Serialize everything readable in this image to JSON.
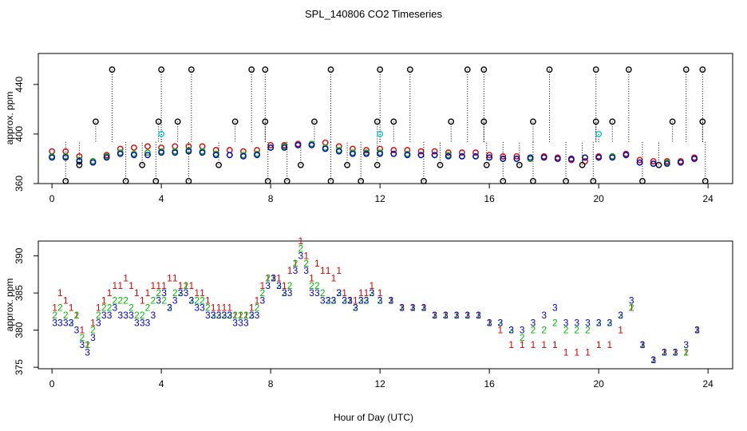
{
  "figure": {
    "title": "SPL_140806  CO2 Timeseries",
    "xlabel": "Hour of Day (UTC)"
  },
  "colors": {
    "series1": "#dd0000",
    "series2": "#00bb00",
    "series3": "#0000cc",
    "flagged": "#000000",
    "flagged_alt": "#00cccc"
  },
  "chart_data": [
    {
      "type": "scatter",
      "title": "",
      "xlabel": "",
      "ylabel": "approx. ppm",
      "xlim": [
        -0.5,
        24.9
      ],
      "ylim": [
        360,
        465
      ],
      "xticks": [
        0,
        4,
        8,
        12,
        16,
        20,
        24
      ],
      "yticks": [
        360,
        400,
        440
      ],
      "series": [
        {
          "name": "1",
          "symbol": "o",
          "x": [
            0,
            0.5,
            1,
            1.5,
            2,
            2.5,
            3,
            3.5,
            4,
            4.5,
            5,
            5.5,
            6,
            6.5,
            7,
            7.5,
            8,
            8.5,
            9,
            9.5,
            10,
            10.5,
            11,
            11.5,
            12,
            12.5,
            13,
            13.5,
            14,
            14.5,
            15,
            15.5,
            16,
            16.5,
            17,
            17.5,
            18,
            18.5,
            19,
            19.5,
            20,
            20.5,
            21,
            21.5,
            22,
            22.5,
            23,
            23.5
          ],
          "values": [
            386,
            386,
            382,
            378,
            383,
            388,
            389,
            390,
            389,
            390,
            390,
            390,
            387,
            387,
            386,
            387,
            391,
            391,
            392,
            392,
            393,
            390,
            388,
            387,
            388,
            387,
            387,
            386,
            386,
            385,
            385,
            385,
            383,
            382,
            382,
            380,
            382,
            381,
            379,
            378,
            382,
            382,
            384,
            379,
            378,
            378,
            378,
            381
          ]
        },
        {
          "name": "2",
          "symbol": "o",
          "x": [
            0,
            0.5,
            1,
            1.5,
            2,
            2.5,
            3,
            3.5,
            4,
            4.5,
            5,
            5.5,
            6,
            6.5,
            7,
            7.5,
            8,
            8.5,
            9,
            9.5,
            10,
            10.5,
            11,
            11.5,
            12,
            12.5,
            13,
            13.5,
            14,
            14.5,
            15,
            15.5,
            16,
            16.5,
            17,
            17.5,
            18,
            18.5,
            19,
            19.5,
            20,
            20.5,
            21,
            21.5,
            22,
            22.5,
            23,
            23.5
          ],
          "values": [
            382,
            382,
            379,
            378,
            382,
            385,
            384,
            385,
            386,
            386,
            387,
            386,
            384,
            383,
            383,
            384,
            389,
            390,
            391,
            392,
            389,
            387,
            385,
            385,
            385,
            384,
            384,
            383,
            383,
            383,
            382,
            382,
            381,
            380,
            380,
            380,
            381,
            380,
            380,
            381,
            381,
            382,
            383,
            377,
            376,
            377,
            377,
            380
          ]
        },
        {
          "name": "3",
          "symbol": "o",
          "x": [
            0,
            0.5,
            1,
            1.5,
            2,
            2.5,
            3,
            3.5,
            4,
            4.5,
            5,
            5.5,
            6,
            6.5,
            7,
            7.5,
            8,
            8.5,
            9,
            9.5,
            10,
            10.5,
            11,
            11.5,
            12,
            12.5,
            13,
            13.5,
            14,
            14.5,
            15,
            15.5,
            16,
            16.5,
            17,
            17.5,
            18,
            18.5,
            19,
            19.5,
            20,
            20.5,
            21,
            21.5,
            22,
            22.5,
            23,
            23.5
          ],
          "values": [
            381,
            381,
            378,
            377,
            381,
            384,
            383,
            383,
            385,
            385,
            386,
            385,
            383,
            383,
            382,
            383,
            389,
            389,
            391,
            391,
            388,
            386,
            384,
            384,
            384,
            384,
            383,
            383,
            383,
            382,
            382,
            382,
            381,
            380,
            380,
            381,
            381,
            380,
            380,
            381,
            381,
            381,
            383,
            377,
            376,
            376,
            377,
            380
          ]
        },
        {
          "name": "flagged",
          "symbol": "o",
          "x": [
            2.2,
            4,
            5.1,
            7.3,
            7.8,
            10.2,
            12,
            13.1,
            15.2,
            15.8,
            18.2,
            19.9,
            21.1,
            23.2,
            23.8,
            1.6,
            3.9,
            4.6,
            6.7,
            7.8,
            9.6,
            11.9,
            12.5,
            14.6,
            15.8,
            17.6,
            19.9,
            20.5,
            22.7,
            23.8,
            0.5,
            1,
            2.7,
            3.3,
            3.8,
            5,
            6.1,
            7.9,
            8.6,
            9.1,
            10.2,
            10.8,
            11.3,
            11.9,
            13.6,
            14.2,
            15.9,
            16.5,
            17.1,
            17.6,
            18.8,
            19.4,
            19.8,
            21.6,
            22.2,
            23.9
          ],
          "values": [
            452,
            452,
            452,
            452,
            452,
            452,
            452,
            452,
            452,
            452,
            452,
            452,
            452,
            452,
            452,
            410,
            410,
            410,
            410,
            410,
            410,
            410,
            410,
            410,
            410,
            410,
            410,
            410,
            410,
            410,
            362,
            375,
            362,
            375,
            362,
            362,
            375,
            362,
            362,
            375,
            362,
            375,
            362,
            375,
            362,
            375,
            375,
            362,
            375,
            362,
            362,
            375,
            362,
            362,
            375,
            362
          ]
        },
        {
          "name": "flagged_alt",
          "symbol": "o",
          "x": [
            4,
            12,
            20
          ],
          "values": [
            400,
            400,
            400
          ]
        }
      ]
    },
    {
      "type": "scatter",
      "title": "",
      "xlabel": "Hour of Day (UTC)",
      "ylabel": "approx. ppm",
      "xlim": [
        -0.5,
        24.9
      ],
      "ylim": [
        374.8,
        392
      ],
      "xticks": [
        0,
        4,
        8,
        12,
        16,
        20,
        24
      ],
      "yticks": [
        375,
        380,
        385,
        390
      ],
      "series": [
        {
          "name": "1",
          "symbol": "1",
          "x": [
            0.1,
            0.3,
            0.5,
            0.7,
            0.9,
            1.1,
            1.3,
            1.5,
            1.7,
            1.9,
            2.1,
            2.3,
            2.5,
            2.7,
            2.9,
            3.1,
            3.3,
            3.5,
            3.7,
            3.9,
            4.1,
            4.3,
            4.5,
            4.7,
            4.9,
            5.1,
            5.3,
            5.5,
            5.7,
            5.9,
            6.1,
            6.3,
            6.5,
            6.7,
            6.9,
            7.1,
            7.3,
            7.5,
            7.7,
            7.9,
            8.1,
            8.3,
            8.5,
            8.7,
            8.9,
            9.1,
            9.3,
            9.5,
            9.7,
            9.9,
            10.1,
            10.3,
            10.5,
            10.7,
            10.9,
            11.1,
            11.3,
            11.5,
            11.7,
            12,
            12.4,
            12.8,
            13.2,
            13.6,
            14,
            14.4,
            14.8,
            15.2,
            15.6,
            16,
            16.4,
            16.8,
            17.2,
            17.6,
            18,
            18.4,
            18.8,
            19.2,
            19.6,
            20,
            20.4,
            20.8,
            21.2,
            21.6,
            22,
            22.4,
            22.8,
            23.2,
            23.6
          ],
          "values": [
            383,
            385,
            384,
            383,
            382,
            380,
            378,
            381,
            383,
            384,
            385,
            386,
            386,
            387,
            386,
            385,
            384,
            385,
            386,
            386,
            386,
            387,
            387,
            386,
            386,
            386,
            385,
            385,
            384,
            383,
            383,
            383,
            383,
            382,
            382,
            382,
            383,
            384,
            386,
            387,
            387,
            387,
            386,
            388,
            389,
            392,
            390,
            387,
            389,
            388,
            388,
            387,
            388,
            385,
            384,
            384,
            385,
            385,
            386,
            385,
            384,
            383,
            383,
            383,
            382,
            382,
            382,
            382,
            382,
            381,
            380,
            378,
            378,
            378,
            378,
            378,
            377,
            377,
            377,
            378,
            378,
            380,
            383,
            378,
            376,
            377,
            377,
            377,
            380
          ]
        },
        {
          "name": "2",
          "symbol": "2",
          "x": [
            0.1,
            0.3,
            0.5,
            0.7,
            0.9,
            1.1,
            1.3,
            1.5,
            1.7,
            1.9,
            2.1,
            2.3,
            2.5,
            2.7,
            2.9,
            3.1,
            3.3,
            3.5,
            3.7,
            3.9,
            4.1,
            4.3,
            4.5,
            4.7,
            4.9,
            5.1,
            5.3,
            5.5,
            5.7,
            5.9,
            6.1,
            6.3,
            6.5,
            6.7,
            6.9,
            7.1,
            7.3,
            7.5,
            7.7,
            7.9,
            8.1,
            8.3,
            8.5,
            8.7,
            8.9,
            9.1,
            9.3,
            9.5,
            9.7,
            9.9,
            10.1,
            10.3,
            10.5,
            10.7,
            10.9,
            11.1,
            11.3,
            11.5,
            11.7,
            12,
            12.4,
            12.8,
            13.2,
            13.6,
            14,
            14.4,
            14.8,
            15.2,
            15.6,
            16,
            16.4,
            16.8,
            17.2,
            17.6,
            18,
            18.4,
            18.8,
            19.2,
            19.6,
            20,
            20.4,
            20.8,
            21.2,
            21.6,
            22,
            22.4,
            22.8,
            23.2,
            23.6
          ],
          "values": [
            382,
            383,
            382,
            381,
            382,
            379,
            378,
            380,
            382,
            383,
            383,
            384,
            384,
            384,
            383,
            382,
            382,
            383,
            384,
            385,
            384,
            383,
            385,
            385,
            386,
            384,
            384,
            384,
            383,
            382,
            382,
            382,
            382,
            382,
            382,
            382,
            382,
            383,
            385,
            387,
            387,
            386,
            385,
            386,
            389,
            391,
            389,
            386,
            386,
            385,
            384,
            384,
            385,
            384,
            384,
            383,
            384,
            384,
            385,
            384,
            384,
            383,
            383,
            383,
            382,
            382,
            382,
            382,
            382,
            381,
            381,
            380,
            379,
            380,
            380,
            381,
            380,
            380,
            380,
            381,
            381,
            382,
            383,
            378,
            376,
            377,
            377,
            377,
            380
          ]
        },
        {
          "name": "3",
          "symbol": "3",
          "x": [
            0.1,
            0.3,
            0.5,
            0.7,
            0.9,
            1.1,
            1.3,
            1.5,
            1.7,
            1.9,
            2.1,
            2.3,
            2.5,
            2.7,
            2.9,
            3.1,
            3.3,
            3.5,
            3.7,
            3.9,
            4.1,
            4.3,
            4.5,
            4.7,
            4.9,
            5.1,
            5.3,
            5.5,
            5.7,
            5.9,
            6.1,
            6.3,
            6.5,
            6.7,
            6.9,
            7.1,
            7.3,
            7.5,
            7.7,
            7.9,
            8.1,
            8.3,
            8.5,
            8.7,
            8.9,
            9.1,
            9.3,
            9.5,
            9.7,
            9.9,
            10.1,
            10.3,
            10.5,
            10.7,
            10.9,
            11.1,
            11.3,
            11.5,
            11.7,
            12,
            12.4,
            12.8,
            13.2,
            13.6,
            14,
            14.4,
            14.8,
            15.2,
            15.6,
            16,
            16.4,
            16.8,
            17.2,
            17.6,
            18,
            18.4,
            18.8,
            19.2,
            19.6,
            20,
            20.4,
            20.8,
            21.2,
            21.6,
            22,
            22.4,
            22.8,
            23.2,
            23.6
          ],
          "values": [
            381,
            381,
            381,
            381,
            380,
            378,
            377,
            379,
            381,
            382,
            382,
            383,
            382,
            382,
            382,
            381,
            381,
            381,
            382,
            384,
            385,
            383,
            384,
            385,
            385,
            384,
            383,
            383,
            382,
            382,
            382,
            382,
            382,
            381,
            381,
            381,
            382,
            382,
            384,
            386,
            387,
            386,
            385,
            385,
            388,
            390,
            388,
            385,
            385,
            384,
            384,
            384,
            385,
            384,
            384,
            383,
            384,
            384,
            385,
            384,
            384,
            383,
            383,
            383,
            382,
            382,
            382,
            382,
            382,
            381,
            381,
            380,
            380,
            381,
            382,
            383,
            381,
            381,
            381,
            381,
            381,
            382,
            384,
            378,
            376,
            377,
            377,
            378,
            380
          ]
        }
      ]
    }
  ]
}
